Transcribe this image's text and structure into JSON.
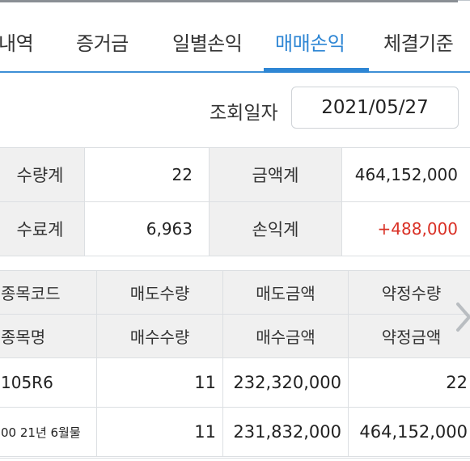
{
  "tabs": [
    {
      "label": "내역"
    },
    {
      "label": "증거금"
    },
    {
      "label": "일별손익"
    },
    {
      "label": "매매손익",
      "active": true
    },
    {
      "label": "체결기준"
    }
  ],
  "query": {
    "date_label": "조회일자",
    "date_value": "2021/05/27"
  },
  "summary": {
    "qty_total_label": "수량계",
    "qty_total_value": "22",
    "amount_total_label": "금액계",
    "amount_total_value": "464,152,000",
    "fee_total_label": "수료계",
    "fee_total_value": "6,963",
    "pnl_total_label": "손익계",
    "pnl_total_value": "+488,000"
  },
  "grid": {
    "header_row1": [
      "종목코드",
      "매도수량",
      "매도금액",
      "약정수량"
    ],
    "header_row2": [
      "종목명",
      "매수수량",
      "매수금액",
      "약정금액"
    ],
    "rows": [
      [
        "105R6",
        "11",
        "232,320,000",
        "22"
      ],
      [
        "00 21년 6월물",
        "11",
        "231,832,000",
        "464,152,000"
      ]
    ]
  },
  "colors": {
    "accent": "#2e86d4",
    "profit": "#d93025",
    "header_bg": "#f0f0f0"
  },
  "icons": {
    "scroll_right": "chevron-right-icon"
  }
}
